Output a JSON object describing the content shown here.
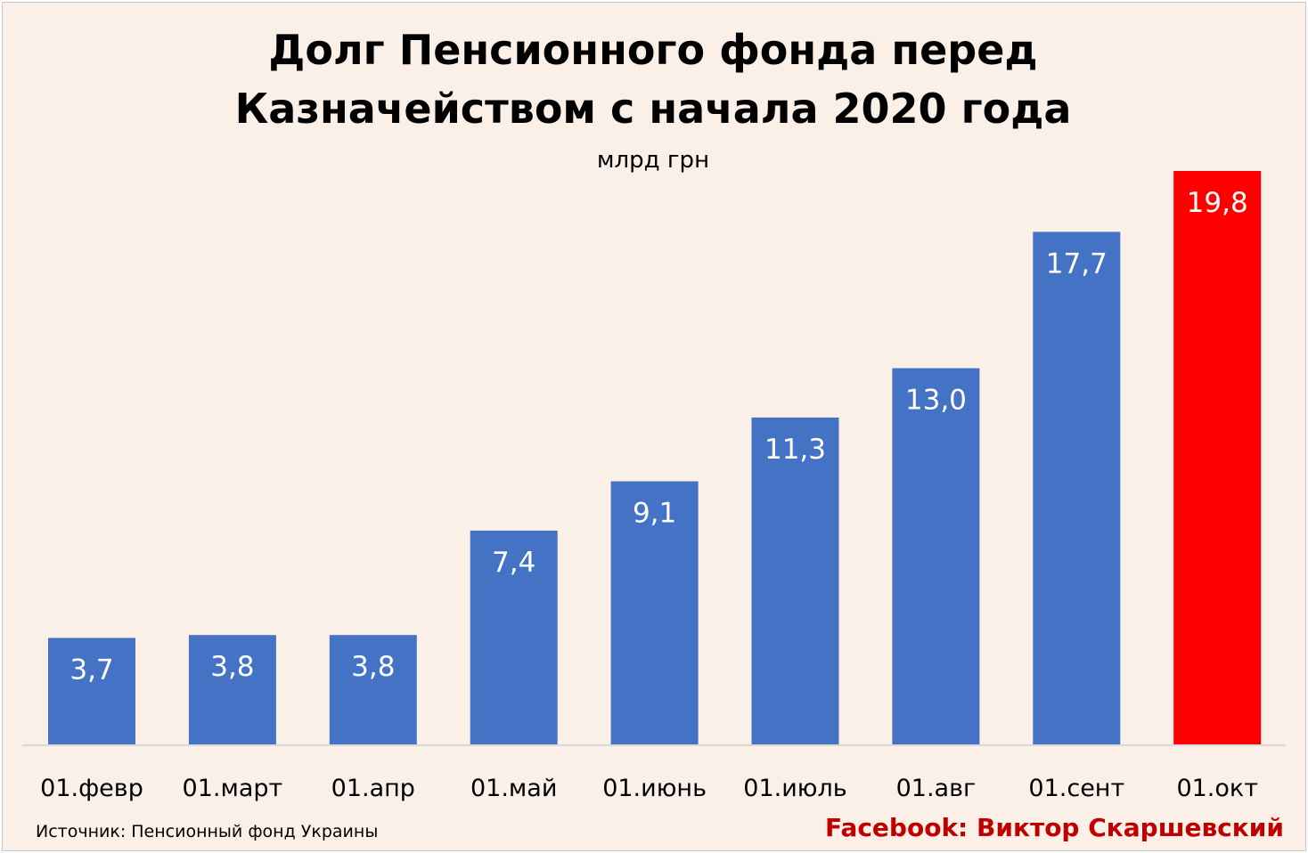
{
  "chart_data": {
    "type": "bar",
    "title_lines": [
      "Долг Пенсионного фонда перед",
      "Казначейством с начала 2020 года"
    ],
    "subtitle": "млрд грн",
    "categories": [
      "01.февр",
      "01.март",
      "01.апр",
      "01.май",
      "01.июнь",
      "01.июль",
      "01.авг",
      "01.сент",
      "01.окт"
    ],
    "values": [
      3.7,
      3.8,
      3.8,
      7.4,
      9.1,
      11.3,
      13.0,
      17.7,
      19.8
    ],
    "data_labels": [
      "3,7",
      "3,8",
      "3,8",
      "7,4",
      "9,1",
      "11,3",
      "13,0",
      "17,7",
      "19,8"
    ],
    "ylim": [
      0,
      19.8
    ],
    "grid": false,
    "colors": {
      "default": "#4472C4",
      "highlight": "#FF0000",
      "highlight_index": 8,
      "label": "#FFFFFF",
      "background": "#FBF0E8",
      "credit": "#C00000"
    }
  },
  "footer": {
    "source": "Источник: Пенсионный фонд Украины",
    "credit": "Facebook: Виктор Скаршевский"
  }
}
